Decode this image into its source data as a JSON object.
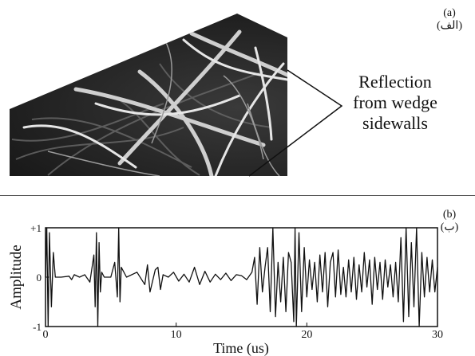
{
  "panel_a": {
    "label": "(a)",
    "label_ar": "(الف)",
    "callout_lines": [
      "Reflection",
      "from wedge",
      "sidewalls"
    ]
  },
  "panel_b": {
    "label": "(b)",
    "label_ar": "(ب)"
  },
  "chart_data": {
    "type": "line",
    "title": "",
    "xlabel": "Time (us)",
    "ylabel": "Amplitude",
    "xlim": [
      0,
      30
    ],
    "ylim": [
      -1,
      1
    ],
    "x_ticks": [
      "0",
      "10",
      "20",
      "30"
    ],
    "y_ticks": [
      "+1",
      "0",
      "-1"
    ],
    "grid": false,
    "series": [
      {
        "description_values": true,
        "x": [
          0,
          0.1,
          0.2,
          0.3,
          0.45,
          0.6,
          0.75,
          1.2,
          1.8,
          2.0,
          2.2,
          2.6,
          3.0,
          3.4,
          3.7,
          3.8,
          3.9,
          4.0,
          4.1,
          4.2,
          4.3,
          4.5,
          5.0,
          5.3,
          5.5,
          5.6,
          5.7,
          5.8,
          6.2,
          7.0,
          7.6,
          7.8,
          8.0,
          8.4,
          8.6,
          8.8,
          9.0,
          9.4,
          9.8,
          10.2,
          10.6,
          11.0,
          11.4,
          11.8,
          12.2,
          12.6,
          13.0,
          13.4,
          13.8,
          14.2,
          14.6,
          15.0,
          15.4,
          15.8,
          16.0,
          16.2,
          16.4,
          16.6,
          16.8,
          17.0,
          17.2,
          17.4,
          17.6,
          17.8,
          18.0,
          18.2,
          18.4,
          18.6,
          18.8,
          19.0,
          19.1,
          19.2,
          19.4,
          19.6,
          19.8,
          20.0,
          20.2,
          20.4,
          20.6,
          20.8,
          21.0,
          21.2,
          21.4,
          21.6,
          21.8,
          22.0,
          22.2,
          22.4,
          22.6,
          22.8,
          23.0,
          23.2,
          23.4,
          23.6,
          23.8,
          24.0,
          24.2,
          24.4,
          24.6,
          24.8,
          25.0,
          25.2,
          25.4,
          25.6,
          25.8,
          26.0,
          26.2,
          26.4,
          26.6,
          26.8,
          27.0,
          27.2,
          27.4,
          27.6,
          27.8,
          28.0,
          28.2,
          28.4,
          28.6,
          28.8,
          29.0,
          29.2,
          29.4,
          29.6,
          29.8,
          30.0
        ],
        "y": [
          0,
          1.0,
          -1.0,
          0.9,
          -0.6,
          0.5,
          0,
          0,
          0.02,
          -0.05,
          0.05,
          0,
          0.05,
          -0.1,
          0.45,
          -0.6,
          0.9,
          -1.0,
          0.7,
          -0.3,
          0.1,
          0,
          0,
          0.3,
          -0.4,
          1.0,
          -0.5,
          0.2,
          0,
          0.1,
          -0.15,
          0.25,
          -0.3,
          0.15,
          0.2,
          -0.25,
          0.05,
          0,
          0.1,
          -0.08,
          0.06,
          -0.1,
          0.2,
          -0.15,
          0.12,
          -0.1,
          0.06,
          -0.05,
          0.08,
          -0.07,
          0.05,
          0.03,
          -0.05,
          0.1,
          0.4,
          -0.55,
          0.6,
          -0.3,
          0.2,
          0.6,
          -0.7,
          1.0,
          -0.8,
          0.3,
          -0.5,
          0.4,
          -0.7,
          0.5,
          0.3,
          -0.9,
          1.0,
          -1.0,
          0.9,
          -0.7,
          0.6,
          -0.4,
          0.35,
          -0.25,
          0.3,
          -0.5,
          0.45,
          -0.3,
          0.5,
          -0.6,
          0.3,
          0.5,
          -0.4,
          0.55,
          -0.35,
          0.2,
          -0.4,
          0.35,
          -0.3,
          0.4,
          -0.45,
          0.25,
          -0.3,
          0.5,
          -0.2,
          0.35,
          -0.55,
          0.4,
          -0.25,
          0.3,
          -0.45,
          0.35,
          -0.2,
          0.25,
          -0.4,
          0.3,
          -0.5,
          0.8,
          -0.9,
          1.0,
          -0.8,
          0.7,
          -0.6,
          1.0,
          -1.0,
          0.5,
          -0.4,
          0.4,
          -0.3,
          0.35,
          -0.3,
          0.2
        ]
      }
    ]
  }
}
